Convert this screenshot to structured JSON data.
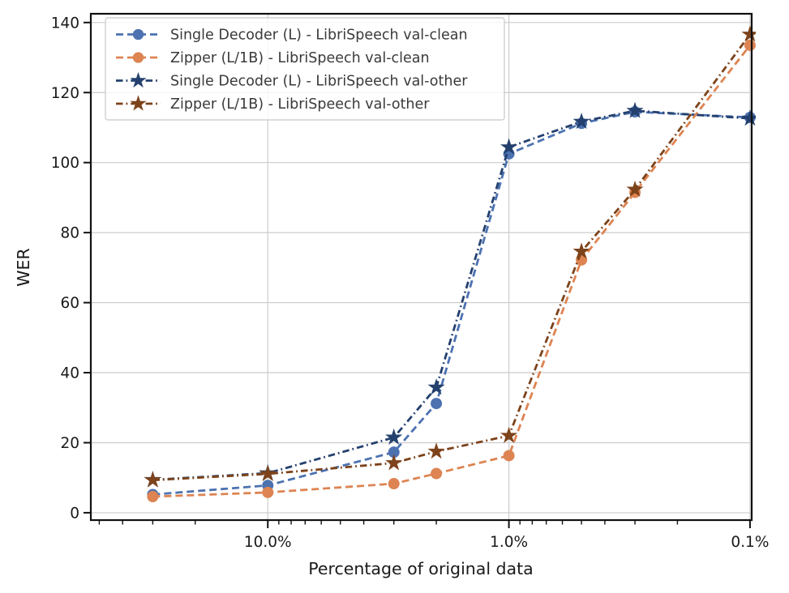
{
  "chart_data": {
    "type": "line",
    "title": "",
    "xlabel": "Percentage of original data",
    "ylabel": "WER",
    "x_scale": "log",
    "x_inverted": true,
    "x_unit": "percent of original data",
    "x": [
      30,
      10,
      3,
      2,
      1,
      0.5,
      0.3,
      0.1
    ],
    "series": [
      {
        "name": "Single Decoder (L) - LibriSpeech val-clean",
        "color": "#4C72B0",
        "marker": "circle",
        "linestyle": "dashed",
        "values": [
          5.2,
          7.8,
          17.3,
          31.2,
          102.5,
          111.2,
          114.5,
          112.9
        ]
      },
      {
        "name": "Zipper (L/1B) - LibriSpeech val-clean",
        "color": "#DD8452",
        "marker": "circle",
        "linestyle": "dashed",
        "values": [
          4.6,
          5.8,
          8.3,
          11.2,
          16.3,
          72.2,
          91.5,
          133.5
        ]
      },
      {
        "name": "Single Decoder (L) - LibriSpeech val-other",
        "color": "#24406E",
        "marker": "star",
        "linestyle": "dashdot",
        "values": [
          9.4,
          11.3,
          21.5,
          35.8,
          104.4,
          111.7,
          114.8,
          112.6
        ]
      },
      {
        "name": "Zipper (L/1B) - LibriSpeech val-other",
        "color": "#7D431B",
        "marker": "star",
        "linestyle": "dashdot",
        "values": [
          9.3,
          11.1,
          14.2,
          17.5,
          22.0,
          74.6,
          92.3,
          136.6
        ]
      }
    ],
    "xticks": [
      {
        "value": 10,
        "label": "10.0%"
      },
      {
        "value": 1,
        "label": "1.0%"
      },
      {
        "value": 0.1,
        "label": "0.1%"
      }
    ],
    "yticks": [
      0,
      20,
      40,
      60,
      80,
      100,
      120,
      140
    ],
    "xlim": [
      54.2,
      0.0984
    ],
    "ylim": [
      -2.1,
      142.5
    ],
    "grid": true,
    "legend_position": "upper left"
  },
  "style": {
    "background": "#ffffff",
    "grid_color": "#cccccc",
    "spine_color": "#111111",
    "tick_color": "#111111",
    "text_color": "#1a1a1a",
    "legend_border_color": "#c8c8c8",
    "legend_background": "rgba(255,255,255,0.8)"
  }
}
